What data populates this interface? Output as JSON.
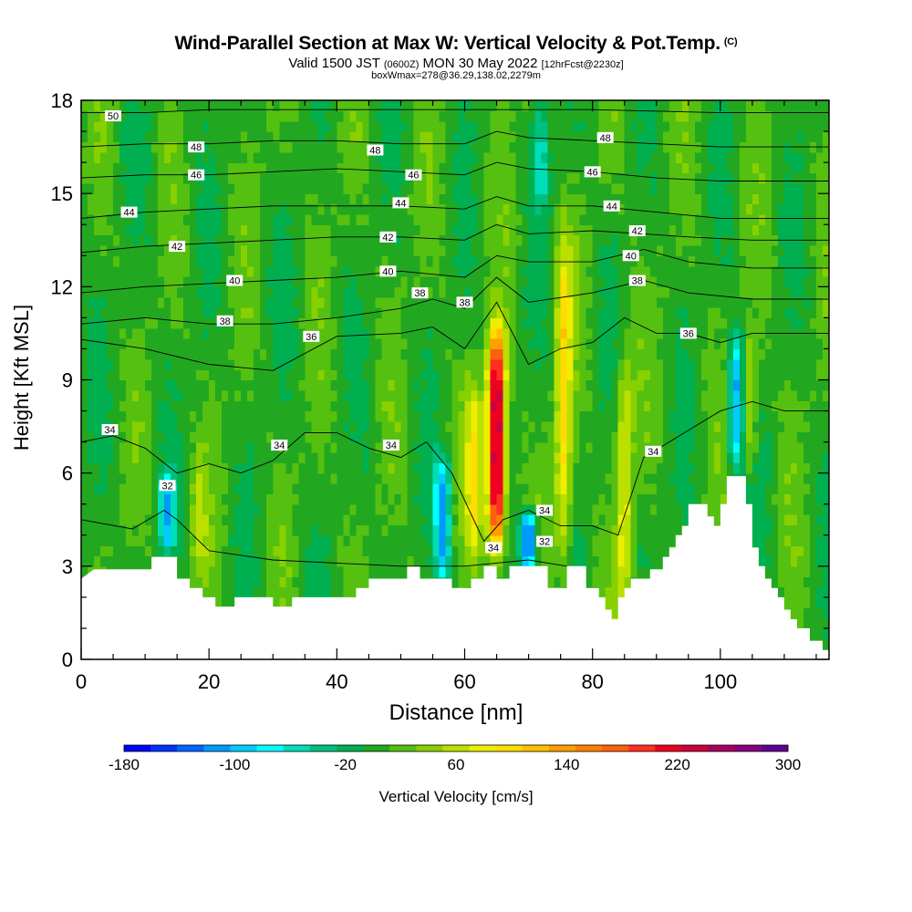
{
  "header": {
    "title": "Wind-Parallel Section at Max W: Vertical Velocity & Pot.Temp.",
    "copyright": "(C)",
    "valid_prefix": "Valid 1500 JST",
    "valid_utc": "(0600Z)",
    "valid_date": "MON 30 May 2022",
    "forecast": "[12hrFcst@2230z]",
    "box_info": "boxWmax=278@36.29,138.02,2279m"
  },
  "chart_data": {
    "type": "heatmap",
    "xlabel": "Distance [nm]",
    "ylabel": "Height [Kft MSL]",
    "xlim": [
      0,
      117
    ],
    "ylim": [
      0,
      18
    ],
    "x_ticks": [
      0,
      20,
      40,
      60,
      80,
      100
    ],
    "y_ticks": [
      0,
      3,
      6,
      9,
      12,
      15,
      18
    ],
    "colorbar": {
      "title": "Vertical Velocity [cm/s]",
      "tick_labels": [
        -180,
        -100,
        -20,
        60,
        140,
        220,
        300
      ],
      "levels": [
        -180,
        -160,
        -140,
        -120,
        -100,
        -80,
        -60,
        -40,
        -20,
        0,
        20,
        40,
        60,
        80,
        100,
        120,
        140,
        160,
        180,
        200,
        220,
        240,
        260,
        280,
        300
      ],
      "colors": [
        "#0000ff",
        "#0033ff",
        "#0066ff",
        "#0099ff",
        "#00ccff",
        "#00ffff",
        "#00ddbb",
        "#00c080",
        "#00b050",
        "#22a820",
        "#55c010",
        "#88d000",
        "#bbe000",
        "#eeee00",
        "#ffdd00",
        "#ffc000",
        "#ffa000",
        "#ff8000",
        "#ff6010",
        "#ff3020",
        "#ee0020",
        "#cc0040",
        "#aa0060",
        "#880080",
        "#600090"
      ]
    },
    "updrafts": [
      {
        "x": 65,
        "z_bottom": 3.5,
        "z_top": 10.6,
        "max_w": 278
      },
      {
        "x": 61.5,
        "z_bottom": 3.0,
        "z_top": 9.0,
        "max_w": 80
      },
      {
        "x": 75.5,
        "z_bottom": 3.0,
        "z_top": 13.5,
        "max_w": 90
      },
      {
        "x": 85,
        "z_bottom": 1.5,
        "z_top": 10.0,
        "max_w": 70
      },
      {
        "x": 104.5,
        "z_bottom": 6.0,
        "z_top": 10.5,
        "max_w": 60
      },
      {
        "x": 18.5,
        "z_bottom": 2.5,
        "z_top": 6.5,
        "max_w": 40
      }
    ],
    "downdrafts": [
      {
        "x": 56.5,
        "z_bottom": 2.5,
        "z_top": 6.5,
        "min_w": -120
      },
      {
        "x": 13.5,
        "z_bottom": 3.5,
        "z_top": 6.0,
        "min_w": -100
      },
      {
        "x": 70,
        "z_bottom": 2.8,
        "z_top": 4.8,
        "min_w": -170
      },
      {
        "x": 102.5,
        "z_bottom": 6.0,
        "z_top": 10.5,
        "min_w": -120
      },
      {
        "x": 72,
        "z_bottom": 14.5,
        "z_top": 18.0,
        "min_w": -60
      }
    ],
    "terrain": [
      [
        0,
        2.6
      ],
      [
        2,
        2.9
      ],
      [
        11,
        2.9
      ],
      [
        11,
        3.3
      ],
      [
        15,
        3.3
      ],
      [
        15,
        2.6
      ],
      [
        17,
        2.6
      ],
      [
        17,
        2.3
      ],
      [
        19,
        2.3
      ],
      [
        19,
        2.0
      ],
      [
        21,
        2.0
      ],
      [
        21,
        1.7
      ],
      [
        24,
        1.7
      ],
      [
        24,
        2.0
      ],
      [
        30,
        2.0
      ],
      [
        30,
        1.7
      ],
      [
        33,
        1.7
      ],
      [
        33,
        2.0
      ],
      [
        43,
        2.0
      ],
      [
        43,
        2.3
      ],
      [
        45,
        2.3
      ],
      [
        45,
        2.6
      ],
      [
        51,
        2.6
      ],
      [
        51,
        3.0
      ],
      [
        53,
        3.0
      ],
      [
        53,
        2.6
      ],
      [
        58,
        2.6
      ],
      [
        58,
        2.3
      ],
      [
        61,
        2.3
      ],
      [
        61,
        2.6
      ],
      [
        63,
        2.6
      ],
      [
        63,
        3.0
      ],
      [
        65,
        3.0
      ],
      [
        65,
        2.6
      ],
      [
        67,
        2.6
      ],
      [
        67,
        3.0
      ],
      [
        73,
        3.0
      ],
      [
        73,
        2.3
      ],
      [
        76,
        2.3
      ],
      [
        76,
        3.0
      ],
      [
        79,
        3.0
      ],
      [
        79,
        2.3
      ],
      [
        81,
        2.3
      ],
      [
        81,
        2.0
      ],
      [
        82,
        2.0
      ],
      [
        82,
        1.6
      ],
      [
        83,
        1.6
      ],
      [
        83,
        1.3
      ],
      [
        84,
        1.3
      ],
      [
        84,
        2.0
      ],
      [
        85,
        2.0
      ],
      [
        85,
        2.3
      ],
      [
        86,
        2.3
      ],
      [
        86,
        2.6
      ],
      [
        89,
        2.6
      ],
      [
        89,
        2.9
      ],
      [
        91,
        2.9
      ],
      [
        91,
        3.3
      ],
      [
        92,
        3.3
      ],
      [
        92,
        3.6
      ],
      [
        93,
        3.6
      ],
      [
        93,
        4.0
      ],
      [
        94,
        4.0
      ],
      [
        94,
        4.3
      ],
      [
        95,
        4.3
      ],
      [
        95,
        5.0
      ],
      [
        98,
        5.0
      ],
      [
        98,
        4.6
      ],
      [
        99,
        4.6
      ],
      [
        99,
        4.3
      ],
      [
        100,
        4.3
      ],
      [
        100,
        5.0
      ],
      [
        101,
        5.0
      ],
      [
        101,
        5.9
      ],
      [
        104,
        5.9
      ],
      [
        104,
        5.0
      ],
      [
        105,
        5.0
      ],
      [
        105,
        3.6
      ],
      [
        106,
        3.6
      ],
      [
        106,
        3.0
      ],
      [
        107,
        3.0
      ],
      [
        107,
        2.6
      ],
      [
        108,
        2.6
      ],
      [
        108,
        2.3
      ],
      [
        109,
        2.3
      ],
      [
        109,
        2.0
      ],
      [
        110,
        2.0
      ],
      [
        110,
        1.6
      ],
      [
        111,
        1.6
      ],
      [
        111,
        1.3
      ],
      [
        112,
        1.3
      ],
      [
        112,
        1.0
      ],
      [
        114,
        1.0
      ],
      [
        114,
        0.6
      ],
      [
        116,
        0.6
      ],
      [
        116,
        0.3
      ],
      [
        117,
        0.3
      ]
    ],
    "isentropes": [
      {
        "value": 32,
        "heights": [
          [
            0,
            4.5
          ],
          [
            8,
            4.2
          ],
          [
            13,
            4.8
          ],
          [
            15,
            4.5
          ],
          [
            20,
            3.5
          ],
          [
            30,
            3.2
          ],
          [
            50,
            3.0
          ],
          [
            60,
            3.0
          ],
          [
            70,
            3.2
          ],
          [
            76,
            3.0
          ]
        ]
      },
      {
        "value": 34,
        "heights": [
          [
            0,
            7.0
          ],
          [
            5,
            7.2
          ],
          [
            10,
            6.8
          ],
          [
            15,
            6.0
          ],
          [
            20,
            6.3
          ],
          [
            25,
            6.0
          ],
          [
            30,
            6.4
          ],
          [
            35,
            7.3
          ],
          [
            40,
            7.3
          ],
          [
            45,
            6.8
          ],
          [
            50,
            6.5
          ],
          [
            54,
            7.0
          ],
          [
            58,
            6.0
          ],
          [
            63,
            3.8
          ],
          [
            66,
            4.5
          ],
          [
            70,
            4.8
          ],
          [
            75,
            4.3
          ],
          [
            80,
            4.3
          ],
          [
            84,
            4.0
          ],
          [
            88,
            6.5
          ],
          [
            92,
            7.0
          ],
          [
            96,
            7.5
          ],
          [
            100,
            8.0
          ],
          [
            105,
            8.3
          ],
          [
            110,
            8.0
          ],
          [
            117,
            8.0
          ]
        ]
      },
      {
        "value": 36,
        "heights": [
          [
            0,
            10.3
          ],
          [
            10,
            10.0
          ],
          [
            20,
            9.5
          ],
          [
            30,
            9.3
          ],
          [
            40,
            10.4
          ],
          [
            50,
            10.5
          ],
          [
            55,
            10.7
          ],
          [
            60,
            10.0
          ],
          [
            65,
            11.5
          ],
          [
            70,
            9.5
          ],
          [
            75,
            10.0
          ],
          [
            80,
            10.2
          ],
          [
            85,
            11.0
          ],
          [
            90,
            10.5
          ],
          [
            95,
            10.5
          ],
          [
            100,
            10.2
          ],
          [
            105,
            10.5
          ],
          [
            110,
            10.5
          ],
          [
            117,
            10.5
          ]
        ]
      },
      {
        "value": 38,
        "heights": [
          [
            0,
            10.8
          ],
          [
            10,
            11.0
          ],
          [
            20,
            10.8
          ],
          [
            30,
            10.8
          ],
          [
            40,
            11.0
          ],
          [
            50,
            11.3
          ],
          [
            55,
            11.6
          ],
          [
            60,
            11.3
          ],
          [
            65,
            12.3
          ],
          [
            70,
            11.5
          ],
          [
            80,
            11.8
          ],
          [
            88,
            12.2
          ],
          [
            95,
            11.8
          ],
          [
            105,
            11.6
          ],
          [
            117,
            11.6
          ]
        ]
      },
      {
        "value": 40,
        "heights": [
          [
            0,
            11.8
          ],
          [
            10,
            12.0
          ],
          [
            20,
            12.1
          ],
          [
            30,
            12.2
          ],
          [
            40,
            12.3
          ],
          [
            50,
            12.5
          ],
          [
            60,
            12.3
          ],
          [
            65,
            13.0
          ],
          [
            70,
            12.8
          ],
          [
            80,
            12.8
          ],
          [
            88,
            13.2
          ],
          [
            95,
            12.8
          ],
          [
            105,
            12.6
          ],
          [
            117,
            12.6
          ]
        ]
      },
      {
        "value": 42,
        "heights": [
          [
            0,
            13.1
          ],
          [
            10,
            13.3
          ],
          [
            20,
            13.4
          ],
          [
            30,
            13.5
          ],
          [
            40,
            13.6
          ],
          [
            50,
            13.6
          ],
          [
            60,
            13.5
          ],
          [
            65,
            14.0
          ],
          [
            70,
            13.7
          ],
          [
            80,
            13.8
          ],
          [
            88,
            13.7
          ],
          [
            95,
            13.6
          ],
          [
            105,
            13.5
          ],
          [
            117,
            13.5
          ]
        ]
      },
      {
        "value": 44,
        "heights": [
          [
            0,
            14.2
          ],
          [
            10,
            14.4
          ],
          [
            20,
            14.5
          ],
          [
            30,
            14.6
          ],
          [
            40,
            14.6
          ],
          [
            50,
            14.6
          ],
          [
            60,
            14.5
          ],
          [
            65,
            14.9
          ],
          [
            70,
            14.6
          ],
          [
            80,
            14.6
          ],
          [
            90,
            14.4
          ],
          [
            100,
            14.2
          ],
          [
            117,
            14.2
          ]
        ]
      },
      {
        "value": 46,
        "heights": [
          [
            0,
            15.5
          ],
          [
            10,
            15.6
          ],
          [
            20,
            15.6
          ],
          [
            30,
            15.7
          ],
          [
            40,
            15.8
          ],
          [
            50,
            15.7
          ],
          [
            60,
            15.6
          ],
          [
            65,
            16.0
          ],
          [
            70,
            15.8
          ],
          [
            80,
            15.7
          ],
          [
            90,
            15.5
          ],
          [
            100,
            15.4
          ],
          [
            117,
            15.4
          ]
        ]
      },
      {
        "value": 48,
        "heights": [
          [
            0,
            16.5
          ],
          [
            10,
            16.6
          ],
          [
            20,
            16.6
          ],
          [
            30,
            16.7
          ],
          [
            40,
            16.7
          ],
          [
            50,
            16.6
          ],
          [
            60,
            16.6
          ],
          [
            65,
            17.0
          ],
          [
            70,
            16.8
          ],
          [
            80,
            16.7
          ],
          [
            90,
            16.6
          ],
          [
            100,
            16.5
          ],
          [
            117,
            16.5
          ]
        ]
      },
      {
        "value": 50,
        "heights": [
          [
            0,
            17.6
          ],
          [
            10,
            17.6
          ],
          [
            20,
            17.7
          ],
          [
            40,
            17.7
          ],
          [
            60,
            17.7
          ],
          [
            80,
            17.7
          ],
          [
            100,
            17.6
          ],
          [
            117,
            17.6
          ]
        ]
      }
    ],
    "contour_labels": [
      {
        "text": "50",
        "x": 5,
        "z": 17.5
      },
      {
        "text": "48",
        "x": 18,
        "z": 16.5
      },
      {
        "text": "48",
        "x": 46,
        "z": 16.4
      },
      {
        "text": "48",
        "x": 82,
        "z": 16.8
      },
      {
        "text": "46",
        "x": 18,
        "z": 15.6
      },
      {
        "text": "46",
        "x": 52,
        "z": 15.6
      },
      {
        "text": "46",
        "x": 80,
        "z": 15.7
      },
      {
        "text": "44",
        "x": 7.5,
        "z": 14.4
      },
      {
        "text": "44",
        "x": 50,
        "z": 14.7
      },
      {
        "text": "44",
        "x": 83,
        "z": 14.6
      },
      {
        "text": "42",
        "x": 15,
        "z": 13.3
      },
      {
        "text": "42",
        "x": 48,
        "z": 13.6
      },
      {
        "text": "42",
        "x": 87,
        "z": 13.8
      },
      {
        "text": "40",
        "x": 24,
        "z": 12.2
      },
      {
        "text": "40",
        "x": 48,
        "z": 12.5
      },
      {
        "text": "40",
        "x": 86,
        "z": 13.0
      },
      {
        "text": "38",
        "x": 22.5,
        "z": 10.9
      },
      {
        "text": "38",
        "x": 53,
        "z": 11.8
      },
      {
        "text": "38",
        "x": 60,
        "z": 11.5
      },
      {
        "text": "38",
        "x": 87,
        "z": 12.2
      },
      {
        "text": "36",
        "x": 36,
        "z": 10.4
      },
      {
        "text": "36",
        "x": 95,
        "z": 10.5
      },
      {
        "text": "34",
        "x": 4.5,
        "z": 7.4
      },
      {
        "text": "34",
        "x": 31,
        "z": 6.9
      },
      {
        "text": "34",
        "x": 48.5,
        "z": 6.9
      },
      {
        "text": "34",
        "x": 72.5,
        "z": 4.8
      },
      {
        "text": "34",
        "x": 64.5,
        "z": 3.6
      },
      {
        "text": "34",
        "x": 89.5,
        "z": 6.7
      },
      {
        "text": "32",
        "x": 13.5,
        "z": 5.6
      },
      {
        "text": "32",
        "x": 72.5,
        "z": 3.8
      }
    ]
  }
}
